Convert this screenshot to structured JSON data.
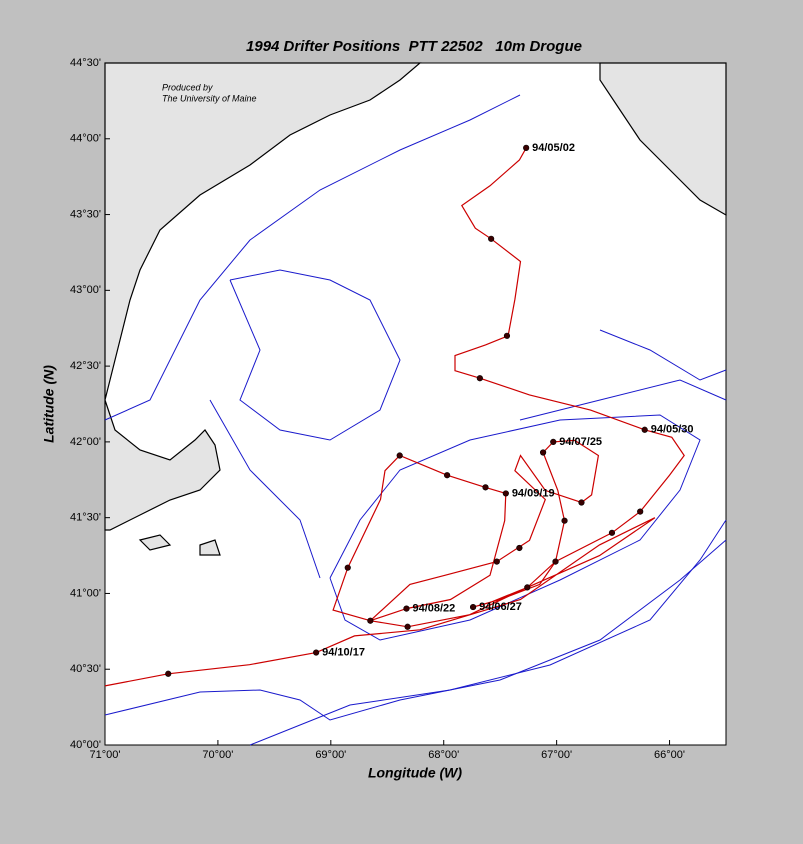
{
  "chart_data": {
    "type": "track",
    "title": "1994 Drifter Positions  PTT 22502   10m Drogue",
    "xlabel": "Longitude (W)",
    "ylabel": "Latitude (N)",
    "notes": [
      "Produced by",
      "The University of Maine"
    ],
    "xlim": [
      -71,
      -65.5
    ],
    "ylim": [
      40,
      44.5
    ],
    "xticks": [
      {
        "value": -71,
        "label": "71°00'"
      },
      {
        "value": -70,
        "label": "70°00'"
      },
      {
        "value": -69,
        "label": "69°00'"
      },
      {
        "value": -68,
        "label": "68°00'"
      },
      {
        "value": -67,
        "label": "67°00'"
      },
      {
        "value": -66,
        "label": "66°00'"
      }
    ],
    "yticks": [
      {
        "value": 40,
        "label": "40°00'"
      },
      {
        "value": 40.5,
        "label": "40°30'"
      },
      {
        "value": 41,
        "label": "41°00'"
      },
      {
        "value": 41.5,
        "label": "41°30'"
      },
      {
        "value": 42,
        "label": "42°00'"
      },
      {
        "value": 42.5,
        "label": "42°30'"
      },
      {
        "value": 43,
        "label": "43°00'"
      },
      {
        "value": 43.5,
        "label": "43°30'"
      },
      {
        "value": 44,
        "label": "44°00'"
      },
      {
        "value": 44.5,
        "label": "44°30'"
      }
    ],
    "track": {
      "color": "#cc0000",
      "x": [
        -67.27,
        -67.33,
        -67.59,
        -67.84,
        -67.72,
        -67.58,
        -67.32,
        -67.37,
        -67.43,
        -67.63,
        -67.9,
        -67.9,
        -67.68,
        -67.24,
        -66.7,
        -66.22,
        -65.98,
        -65.87,
        -66.0,
        -66.26,
        -66.51,
        -67.01,
        -67.26,
        -67.59,
        -67.74,
        -67.5,
        -67.15,
        -67.01,
        -66.93,
        -66.99,
        -67.12,
        -67.03,
        -66.84,
        -66.63,
        -66.69,
        -66.78,
        -67.1,
        -67.32,
        -67.37,
        -67.1,
        -67.24,
        -67.53,
        -67.99,
        -68.3,
        -68.65,
        -68.33,
        -67.94,
        -67.59,
        -67.46,
        -67.45,
        -67.63,
        -67.97,
        -68.39,
        -68.52,
        -68.56,
        -68.85,
        -68.98,
        -68.65,
        -68.32,
        -67.77,
        -67.26,
        -66.62,
        -66.13,
        -66.62,
        -67.32,
        -68.21,
        -68.79,
        -69.13,
        -69.72,
        -70.44,
        -71.0
      ],
      "y": [
        43.94,
        43.86,
        43.69,
        43.56,
        43.41,
        43.34,
        43.19,
        42.94,
        42.7,
        42.64,
        42.57,
        42.47,
        42.42,
        42.31,
        42.21,
        42.08,
        42.03,
        41.91,
        41.78,
        41.54,
        41.4,
        41.21,
        41.04,
        40.94,
        40.91,
        40.96,
        41.06,
        41.21,
        41.48,
        41.68,
        41.93,
        42.0,
        42.01,
        41.91,
        41.65,
        41.6,
        41.68,
        41.91,
        41.81,
        41.62,
        41.35,
        41.21,
        41.12,
        41.06,
        40.82,
        40.9,
        40.96,
        41.12,
        41.48,
        41.66,
        41.7,
        41.78,
        41.91,
        41.81,
        41.62,
        41.17,
        40.89,
        40.82,
        40.78,
        40.86,
        41.04,
        41.25,
        41.5,
        41.32,
        40.96,
        40.76,
        40.72,
        40.61,
        40.53,
        40.47,
        40.39
      ]
    },
    "markers": {
      "color": "#3a0000",
      "x": [
        -67.27,
        -67.58,
        -67.44,
        -67.68,
        -66.22,
        -67.03,
        -67.12,
        -68.39,
        -67.97,
        -67.63,
        -67.45,
        -66.78,
        -66.93,
        -66.26,
        -66.51,
        -67.33,
        -67.53,
        -67.01,
        -68.85,
        -67.26,
        -67.74,
        -68.33,
        -68.65,
        -68.32,
        -69.13,
        -70.44
      ],
      "y": [
        43.94,
        43.34,
        42.7,
        42.42,
        42.08,
        42.0,
        41.93,
        41.91,
        41.78,
        41.7,
        41.66,
        41.6,
        41.48,
        41.54,
        41.4,
        41.3,
        41.21,
        41.21,
        41.17,
        41.04,
        40.91,
        40.9,
        40.82,
        40.78,
        40.61,
        40.47
      ],
      "labels": [
        "94/05/02",
        null,
        null,
        null,
        "94/05/30",
        "94/07/25",
        null,
        null,
        null,
        null,
        "94/09/19",
        null,
        null,
        null,
        null,
        null,
        null,
        null,
        null,
        null,
        "94/06/27",
        "94/08/22",
        null,
        null,
        "94/10/17",
        null
      ]
    }
  }
}
